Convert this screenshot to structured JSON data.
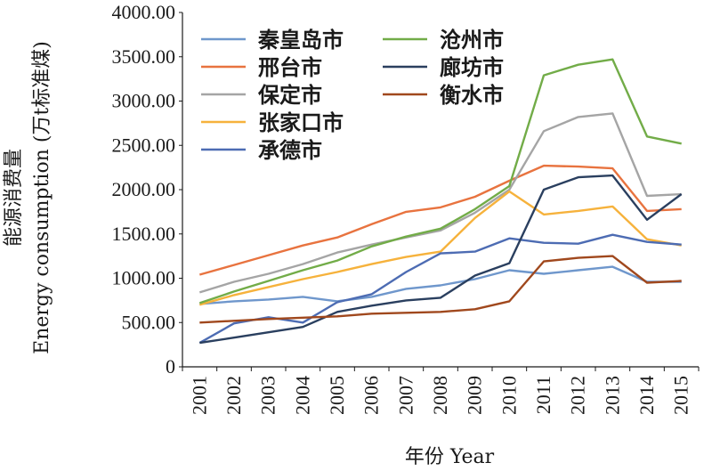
{
  "chart_data": {
    "type": "line",
    "ylabel_cn": "能源消费量",
    "ylabel_en": "Energy consumption (万t标准煤)",
    "xlabel": "年份 Year",
    "ylim": [
      0,
      4000
    ],
    "y_ticks": [
      "0",
      "500.00",
      "1000.00",
      "1500.00",
      "2000.00",
      "2500.00",
      "3000.00",
      "3500.00",
      "4000.00"
    ],
    "categories": [
      "2001",
      "2002",
      "2003",
      "2004",
      "2005",
      "2006",
      "2007",
      "2008",
      "2009",
      "2010",
      "2011",
      "2012",
      "2013",
      "2014",
      "2015"
    ],
    "legend_placement": "top-left",
    "grid": false,
    "series": [
      {
        "name": "秦皇岛市",
        "color": "#6f97cc",
        "values": [
          710,
          740,
          760,
          790,
          740,
          790,
          880,
          920,
          990,
          1090,
          1050,
          1090,
          1130,
          960,
          960
        ]
      },
      {
        "name": "邢台市",
        "color": "#e8733f",
        "values": [
          1040,
          1150,
          1260,
          1370,
          1460,
          1610,
          1750,
          1800,
          1920,
          2100,
          2270,
          2260,
          2240,
          1760,
          1780
        ]
      },
      {
        "name": "保定市",
        "color": "#a5a5a5",
        "values": [
          840,
          960,
          1050,
          1160,
          1290,
          1380,
          1460,
          1540,
          1740,
          2000,
          2660,
          2820,
          2860,
          1930,
          1950
        ]
      },
      {
        "name": "张家口市",
        "color": "#f6b23c",
        "values": [
          700,
          810,
          900,
          990,
          1070,
          1160,
          1240,
          1300,
          1680,
          1980,
          1720,
          1760,
          1810,
          1440,
          1370
        ]
      },
      {
        "name": "承德市",
        "color": "#4d6cb3",
        "values": [
          270,
          490,
          560,
          500,
          730,
          820,
          1070,
          1280,
          1300,
          1450,
          1400,
          1390,
          1490,
          1410,
          1380
        ]
      },
      {
        "name": "沧州市",
        "color": "#72ac48",
        "values": [
          720,
          850,
          970,
          1090,
          1200,
          1360,
          1470,
          1560,
          1780,
          2040,
          3290,
          3410,
          3470,
          2600,
          2520
        ]
      },
      {
        "name": "廊坊市",
        "color": "#2a3f5f",
        "values": [
          270,
          330,
          390,
          450,
          620,
          690,
          750,
          780,
          1030,
          1170,
          2000,
          2140,
          2160,
          1660,
          1950
        ]
      },
      {
        "name": "衡水市",
        "color": "#a0481d",
        "values": [
          500,
          520,
          540,
          555,
          570,
          600,
          610,
          620,
          650,
          740,
          1190,
          1230,
          1250,
          950,
          970
        ]
      }
    ]
  }
}
